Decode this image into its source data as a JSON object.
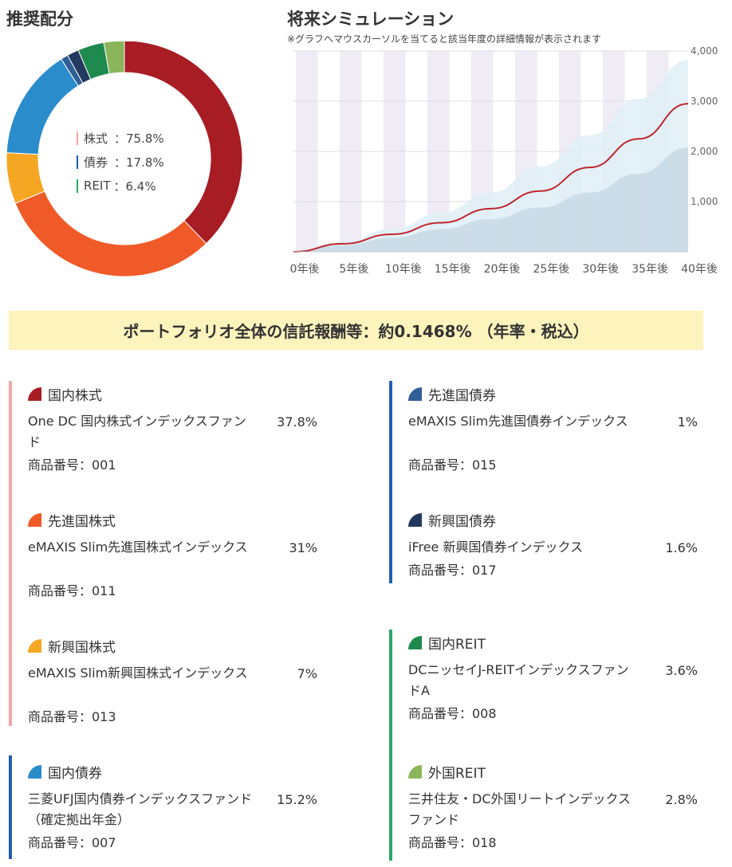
{
  "allocation": {
    "title": "推奨配分",
    "legend": [
      {
        "label": "株式",
        "value": "：75.8%",
        "color": "#f4a6a6"
      },
      {
        "label": "債券",
        "value": "：17.8%",
        "color": "#1e5fb0"
      },
      {
        "label": "REIT",
        "value": "：6.4%",
        "color": "#2aa865"
      }
    ],
    "chart_data": {
      "type": "pie",
      "title": "",
      "slices": [
        {
          "name": "国内株式",
          "value": 37.8,
          "color": "#a81c24"
        },
        {
          "name": "先進国株式",
          "value": 31,
          "color": "#f05a28"
        },
        {
          "name": "新興国株式",
          "value": 7,
          "color": "#f5a623"
        },
        {
          "name": "国内債券",
          "value": 15.2,
          "color": "#2b8ccc"
        },
        {
          "name": "先進国債券",
          "value": 1,
          "color": "#2f5f95"
        },
        {
          "name": "新興国債券",
          "value": 1.6,
          "color": "#23385e"
        },
        {
          "name": "国内REIT",
          "value": 3.6,
          "color": "#1f8a4e"
        },
        {
          "name": "外国REIT",
          "value": 2.8,
          "color": "#8bb55b"
        }
      ]
    }
  },
  "simulation": {
    "title": "将来シミュレーション",
    "note": "※グラフへマウスカーソルを当てると該当年度の詳細情報が表示されます",
    "chart_data": {
      "type": "area",
      "title": "",
      "x": [
        0,
        5,
        10,
        15,
        20,
        25,
        30,
        35,
        40
      ],
      "x_tick_labels": [
        "0年後",
        "5年後",
        "10年後",
        "15年後",
        "20年後",
        "25年後",
        "30年後",
        "35年後",
        "40年後"
      ],
      "y_tick_labels": [
        "1,000万",
        "2,000万",
        "3,000万",
        "4,000万"
      ],
      "y_ticks": [
        1000,
        2000,
        3000,
        4000
      ],
      "ylim": [
        0,
        4000
      ],
      "series": [
        {
          "role": "upper",
          "values": [
            0,
            200,
            450,
            780,
            1180,
            1700,
            2320,
            3050,
            3820
          ],
          "color": "#dff0f7"
        },
        {
          "role": "median",
          "values": [
            0,
            160,
            350,
            580,
            860,
            1210,
            1680,
            2250,
            2950
          ],
          "color": "#c0262c"
        },
        {
          "role": "lower",
          "values": [
            0,
            130,
            280,
            450,
            650,
            880,
            1180,
            1560,
            2080
          ],
          "color": "#c9dae6"
        }
      ],
      "grid": true
    }
  },
  "fee_banner": "ポートフォリオ全体の信託報酬等：約0.1468% （年率・税込）",
  "funds": {
    "left": [
      {
        "category": "国内株式",
        "icon_color": "#a81c24",
        "name": "One DC 国内株式インデックスファンド",
        "pct": "37.8%",
        "code": "商品番号：001"
      },
      {
        "category": "先進国株式",
        "icon_color": "#f05a28",
        "name": "eMAXIS Slim先進国株式インデックス",
        "pct": "31%",
        "code": "商品番号：011"
      },
      {
        "category": "新興国株式",
        "icon_color": "#f5a623",
        "name": "eMAXIS Slim新興国株式インデックス",
        "pct": "7%",
        "code": "商品番号：013"
      },
      {
        "category": "国内債券",
        "icon_color": "#2b8ccc",
        "name": "三菱UFJ国内債券インデックスファンド（確定拠出年金）",
        "pct": "15.2%",
        "code": "商品番号：007"
      }
    ],
    "right": [
      {
        "category": "先進国債券",
        "icon_color": "#2f5f95",
        "name": "eMAXIS Slim先進国債券インデックス",
        "pct": "1%",
        "code": "商品番号：015"
      },
      {
        "category": "新興国債券",
        "icon_color": "#23385e",
        "name": "iFree 新興国債券インデックス",
        "pct": "1.6%",
        "code": "商品番号：017"
      },
      {
        "category": "国内REIT",
        "icon_color": "#1f8a4e",
        "name": "DCニッセイJ-REITインデックスファンドA",
        "pct": "3.6%",
        "code": "商品番号：008"
      },
      {
        "category": "外国REIT",
        "icon_color": "#8bb55b",
        "name": "三井住友・DC外国リートインデックスファンド",
        "pct": "2.8%",
        "code": "商品番号：018"
      }
    ]
  },
  "group_colors": {
    "stocks": "#f4a6a6",
    "bonds": "#1e5fb0",
    "reit": "#2aa865"
  }
}
